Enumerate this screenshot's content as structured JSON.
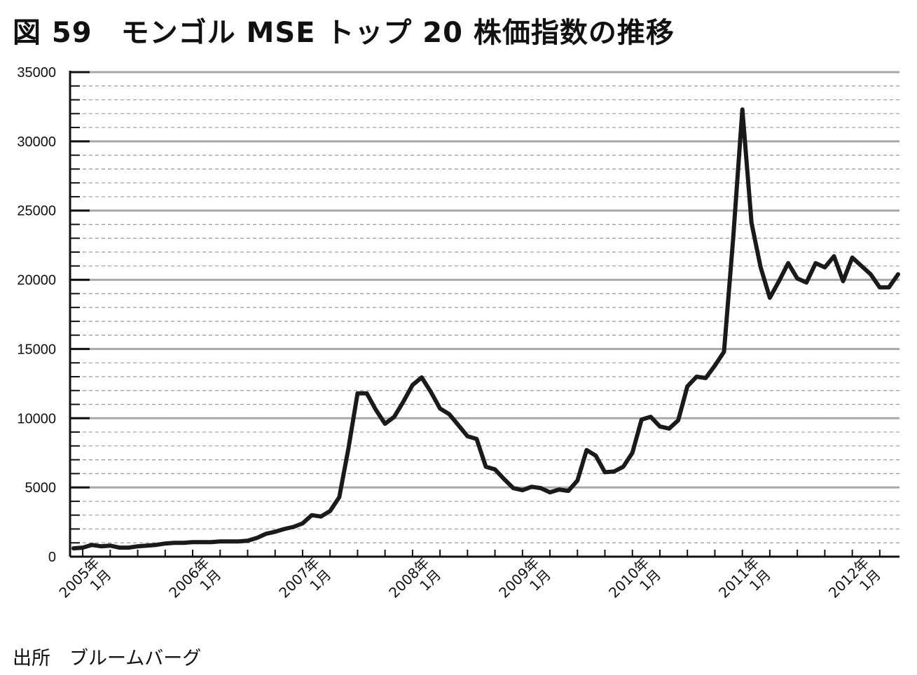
{
  "header": {
    "title": "図 59　モンゴル MSE トップ 20 株価指数の推移"
  },
  "footer": {
    "source": "出所　ブルームバーグ"
  },
  "chart_data": {
    "type": "line",
    "title": "図 59　モンゴル MSE トップ 20 株価指数の推移",
    "xlabel": "",
    "ylabel": "",
    "ylim": [
      0,
      35000
    ],
    "yticks": [
      "0",
      "5000",
      "10000",
      "15000",
      "20000",
      "25000",
      "30000",
      "35000"
    ],
    "grid": {
      "major": true,
      "minor_dashed": true
    },
    "x_labels": [
      {
        "month_index": 0,
        "year": "2005年",
        "month": "1月"
      },
      {
        "month_index": 12,
        "year": "2006年",
        "month": "1月"
      },
      {
        "month_index": 24,
        "year": "2007年",
        "month": "1月"
      },
      {
        "month_index": 36,
        "year": "2008年",
        "month": "1月"
      },
      {
        "month_index": 48,
        "year": "2009年",
        "month": "1月"
      },
      {
        "month_index": 60,
        "year": "2010年",
        "month": "1月"
      },
      {
        "month_index": 72,
        "year": "2011年",
        "month": "1月"
      },
      {
        "month_index": 84,
        "year": "2012年",
        "month": "1月"
      }
    ],
    "series": [
      {
        "values": [
          600,
          650,
          850,
          750,
          800,
          650,
          650,
          750,
          800,
          850,
          950,
          1000,
          1000,
          1050,
          1050,
          1050,
          1100,
          1100,
          1100,
          1150,
          1350,
          1650,
          1800,
          2000,
          2150,
          2400,
          3000,
          2900,
          3300,
          4300,
          7800,
          11800,
          11800,
          10600,
          9600,
          10100,
          11200,
          12400,
          12950,
          11900,
          10700,
          10300,
          9500,
          8700,
          8500,
          6500,
          6300,
          5600,
          4950,
          4800,
          5050,
          4950,
          4650,
          4850,
          4750,
          5500,
          7700,
          7300,
          6100,
          6150,
          6500,
          7500,
          9900,
          10100,
          9400,
          9250,
          9850,
          12300,
          13000,
          12900,
          13800,
          14800,
          23000,
          32300,
          24100,
          20900,
          18700,
          19900,
          21200,
          20100,
          19800,
          21200,
          20900,
          21700,
          19900,
          21600,
          21000,
          20400,
          19450,
          19450,
          20400
        ]
      }
    ]
  }
}
